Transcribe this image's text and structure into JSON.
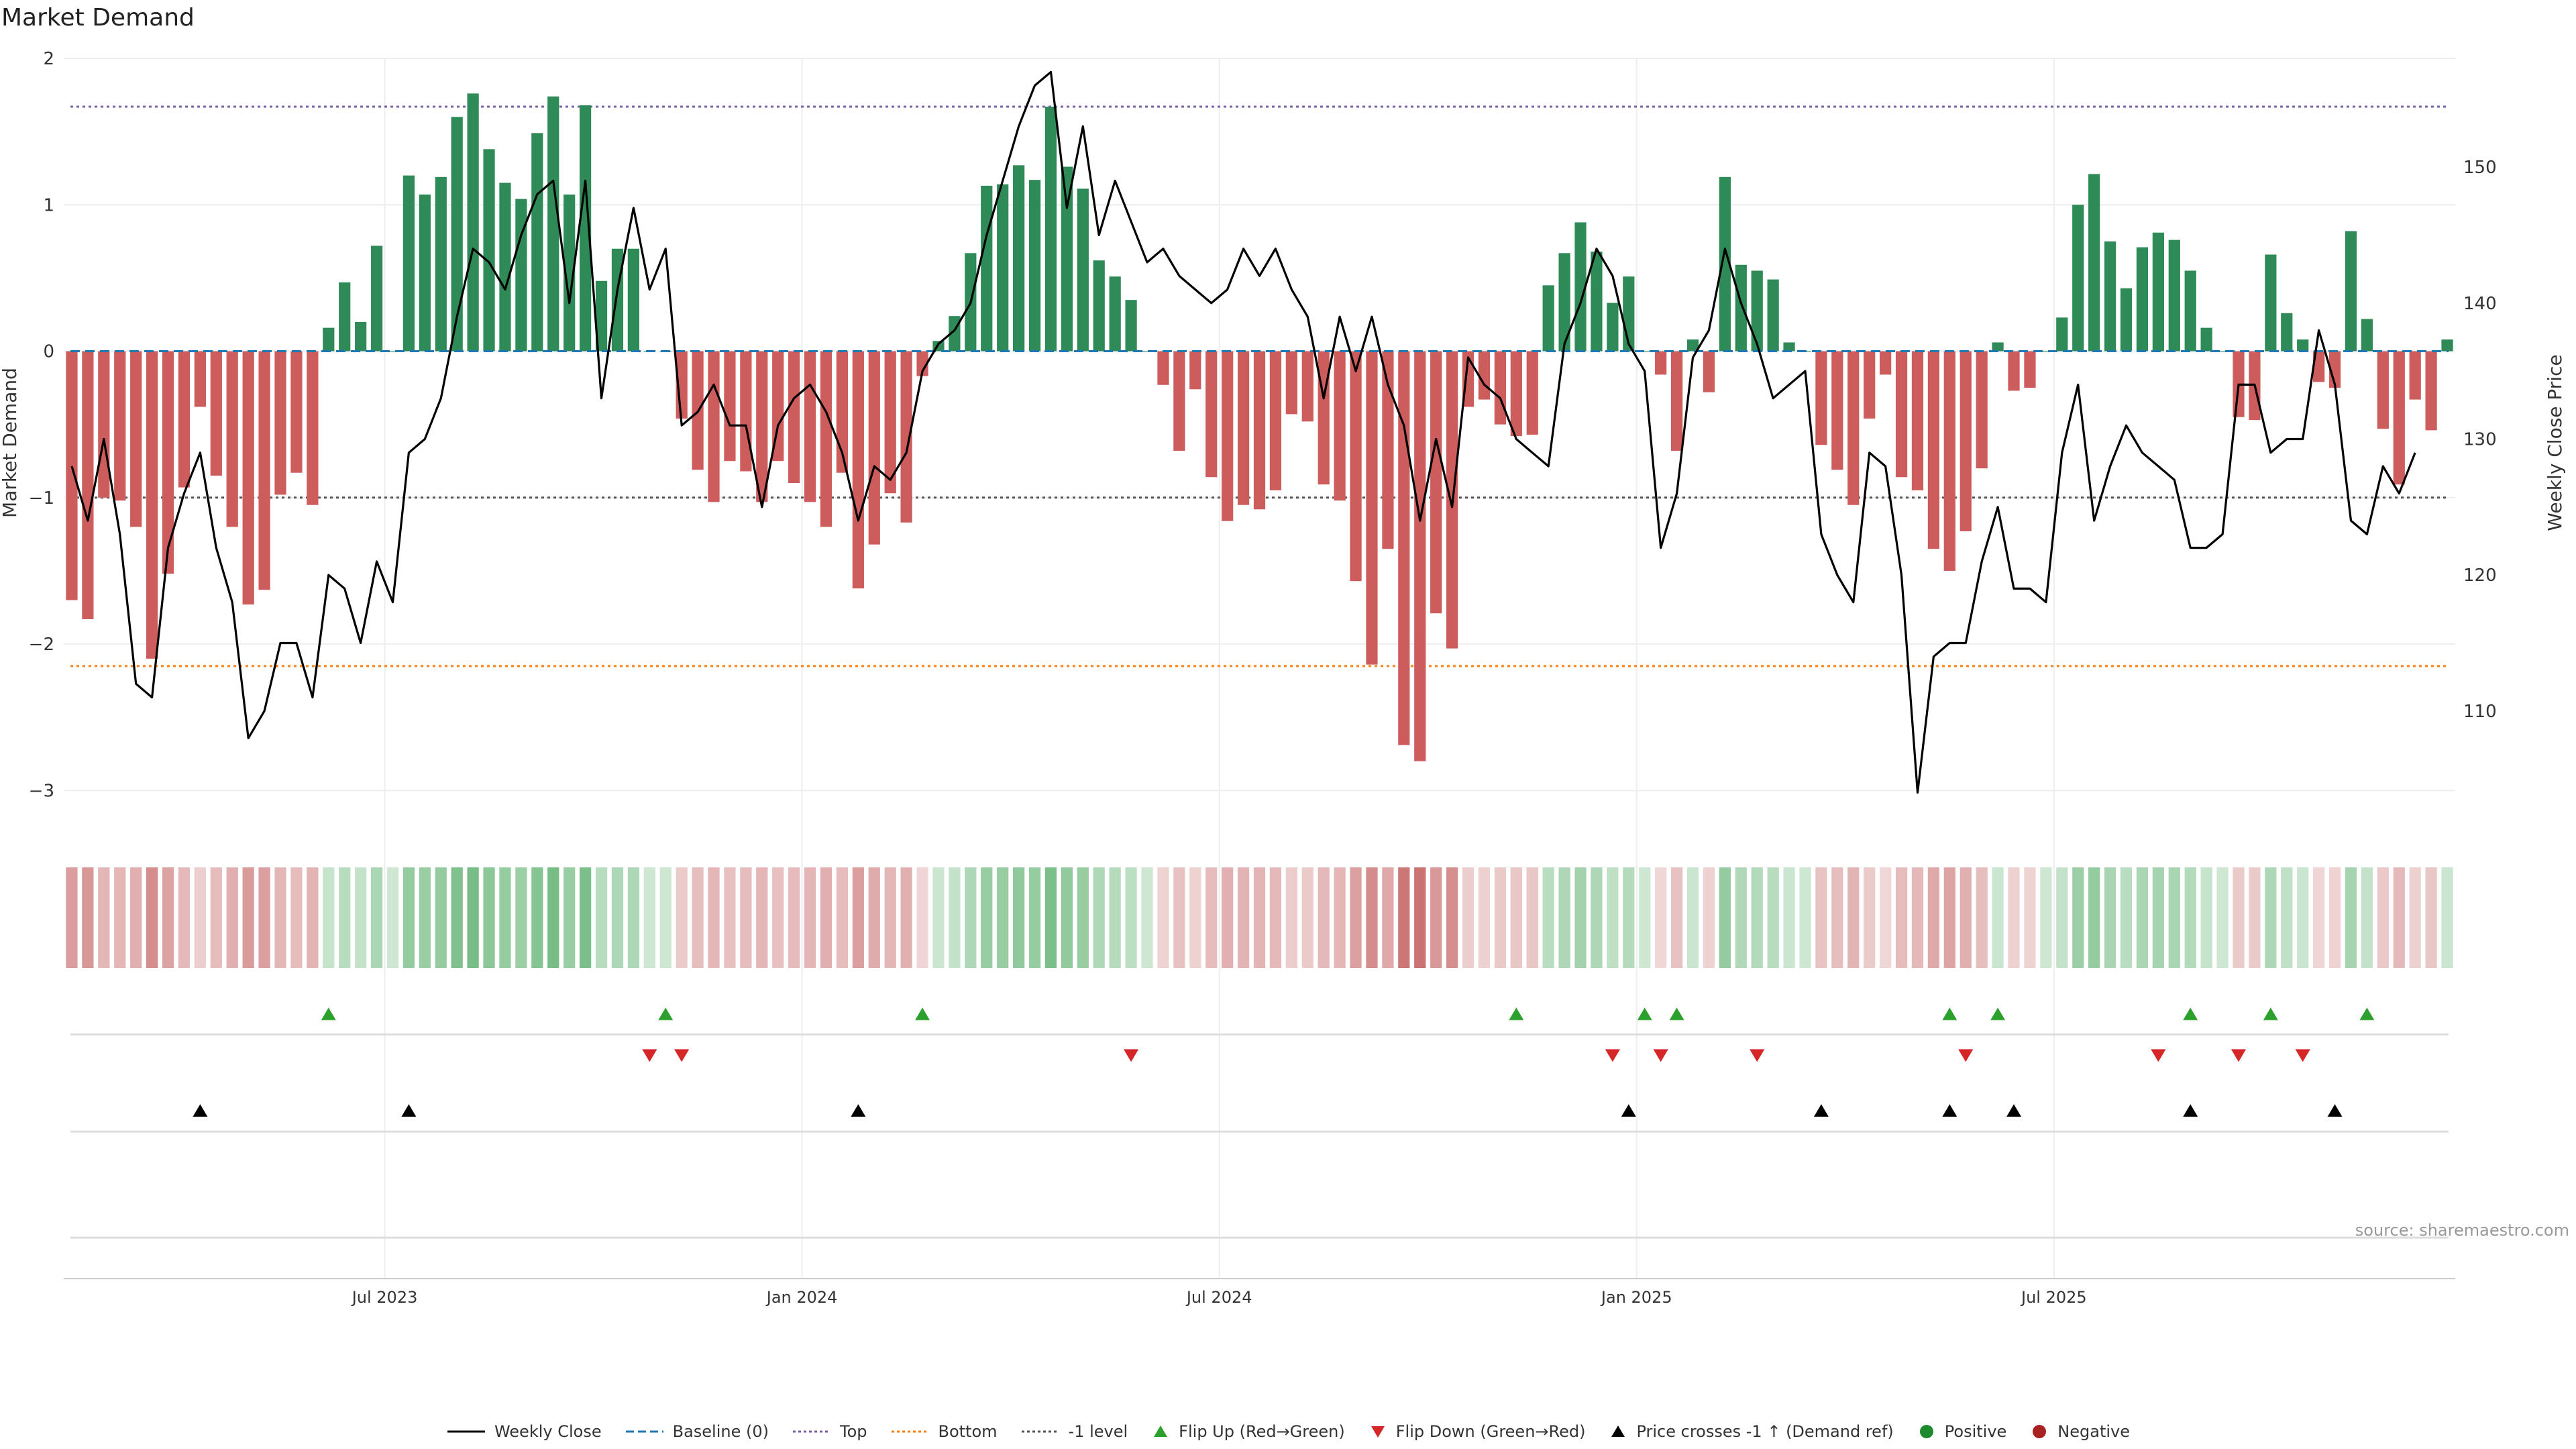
{
  "chart_data": {
    "type": "bar",
    "title": "Market Demand",
    "ylabel_left": "Market Demand",
    "ylabel_right": "Weekly Close Price",
    "ylim_left": [
      -3.2,
      2.0
    ],
    "ylim_right": [
      102,
      158
    ],
    "yticks_left": [
      "2",
      "1",
      "0",
      "−1",
      "−2",
      "−3"
    ],
    "yticks_left_values": [
      2,
      1,
      0,
      -1,
      -2,
      -3
    ],
    "yticks_right": [
      "150",
      "140",
      "130",
      "120",
      "110"
    ],
    "yticks_right_values": [
      150,
      140,
      130,
      120,
      110
    ],
    "x_tick_labels": [
      "Jul 2023",
      "Jan 2024",
      "Jul 2024",
      "Jan 2025",
      "Jul 2025"
    ],
    "x_tick_week_index": [
      20,
      46,
      72,
      98,
      124
    ],
    "reference_lines": {
      "top": 1.67,
      "bottom": -2.15,
      "minus_one": -1.0,
      "baseline": 0
    },
    "demand_values": [
      -1.7,
      -1.83,
      -1.0,
      -1.02,
      -1.2,
      -2.1,
      -1.52,
      -0.93,
      -0.38,
      -0.85,
      -1.2,
      -1.73,
      -1.63,
      -0.98,
      -0.83,
      -1.05,
      0.16,
      0.47,
      0.2,
      0.72,
      0.0,
      1.2,
      1.07,
      1.19,
      1.6,
      1.76,
      1.38,
      1.15,
      1.04,
      1.49,
      1.74,
      1.07,
      1.68,
      0.48,
      0.7,
      0.7,
      0.0,
      0.0,
      -0.46,
      -0.81,
      -1.03,
      -0.75,
      -0.82,
      -1.03,
      -0.75,
      -0.9,
      -1.03,
      -1.2,
      -0.83,
      -1.62,
      -1.32,
      -0.97,
      -1.17,
      -0.17,
      0.07,
      0.24,
      0.67,
      1.13,
      1.14,
      1.27,
      1.17,
      1.67,
      1.26,
      1.11,
      0.62,
      0.51,
      0.35,
      0.0,
      -0.23,
      -0.68,
      -0.26,
      -0.86,
      -1.16,
      -1.05,
      -1.08,
      -0.95,
      -0.43,
      -0.48,
      -0.91,
      -1.02,
      -1.57,
      -2.14,
      -1.35,
      -2.69,
      -2.8,
      -1.79,
      -2.03,
      -0.38,
      -0.33,
      -0.5,
      -0.58,
      -0.57,
      0.45,
      0.67,
      0.88,
      0.68,
      0.33,
      0.51,
      0.0,
      -0.16,
      -0.68,
      0.08,
      -0.28,
      1.19,
      0.59,
      0.55,
      0.49,
      0.06,
      0.0,
      -0.64,
      -0.81,
      -1.05,
      -0.46,
      -0.16,
      -0.86,
      -0.95,
      -1.35,
      -1.5,
      -1.23,
      -0.8,
      0.06,
      -0.27,
      -0.25,
      0.0,
      0.23,
      1.0,
      1.21,
      0.75,
      0.43,
      0.71,
      0.81,
      0.76,
      0.55,
      0.16,
      0.0,
      -0.45,
      -0.47,
      0.66,
      0.26,
      0.08,
      -0.21,
      -0.25,
      0.82,
      0.22,
      -0.53,
      -0.91,
      -0.33,
      -0.54,
      0.08
    ],
    "weekly_close": [
      128,
      124,
      130,
      123,
      112,
      111,
      122,
      126,
      129,
      122,
      118,
      108,
      110,
      115,
      115,
      111,
      120,
      119,
      115,
      121,
      118,
      129,
      130,
      133,
      139,
      144,
      143,
      141,
      145,
      148,
      149,
      140,
      149,
      133,
      141,
      147,
      141,
      144,
      131,
      132,
      134,
      131,
      131,
      125,
      131,
      133,
      134,
      132,
      129,
      124,
      128,
      127,
      129,
      135,
      137,
      138,
      140,
      145,
      149,
      153,
      156,
      157,
      147,
      153,
      145,
      149,
      146,
      143,
      144,
      142,
      141,
      140,
      141,
      144,
      142,
      144,
      141,
      139,
      133,
      139,
      135,
      139,
      134,
      131,
      124,
      130,
      125,
      136,
      134,
      133,
      130,
      129,
      128,
      137,
      140,
      144,
      142,
      137,
      135,
      122,
      126,
      136,
      138,
      144,
      140,
      137,
      133,
      134,
      135,
      123,
      120,
      118,
      129,
      128,
      120,
      104,
      114,
      115,
      115,
      121,
      125,
      119,
      119,
      118,
      129,
      134,
      124,
      128,
      131,
      129,
      128,
      127,
      122,
      122,
      123,
      134,
      134,
      129,
      130,
      130,
      138,
      134,
      124,
      123,
      128,
      126,
      129
    ],
    "strip": {
      "description": "per-week color intensity strip (green = positive demand, red = negative demand)"
    },
    "signal_rows": {
      "flip_up_week_index": [
        16,
        37,
        53,
        90,
        98,
        100,
        117,
        120,
        132,
        137,
        143
      ],
      "flip_down_week_index": [
        36,
        38,
        66,
        96,
        99,
        105,
        118,
        130,
        135,
        139
      ],
      "price_cross_week_index": [
        8,
        21,
        49,
        97,
        109,
        117,
        121,
        132,
        141
      ]
    },
    "legend": [
      {
        "key": "weekly_close",
        "label": "Weekly Close",
        "color": "#000000",
        "style": "line"
      },
      {
        "key": "baseline",
        "label": "Baseline (0)",
        "color": "#1f77b4",
        "style": "dashed"
      },
      {
        "key": "top",
        "label": "Top",
        "color": "#7b5fa8",
        "style": "dotted"
      },
      {
        "key": "bottom",
        "label": "Bottom",
        "color": "#ff7f0e",
        "style": "dotted"
      },
      {
        "key": "minus_one",
        "label": "-1 level",
        "color": "#555555",
        "style": "dotted"
      },
      {
        "key": "flip_up",
        "label": "Flip Up (Red→Green)",
        "color": "#2ca02c",
        "style": "tri-up"
      },
      {
        "key": "flip_down",
        "label": "Flip Down (Green→Red)",
        "color": "#d62728",
        "style": "tri-down"
      },
      {
        "key": "price_cross",
        "label": "Price crosses -1 ↑ (Demand ref)",
        "color": "#000000",
        "style": "tri-up"
      },
      {
        "key": "positive",
        "label": "Positive",
        "color": "#1e8a2e",
        "style": "dot"
      },
      {
        "key": "negative",
        "label": "Negative",
        "color": "#a8201f",
        "style": "dot"
      }
    ],
    "colors": {
      "pos_bar": "#2e8b57",
      "neg_bar": "#cd5c5c"
    }
  },
  "source_text": "source: sharemaestro.com"
}
